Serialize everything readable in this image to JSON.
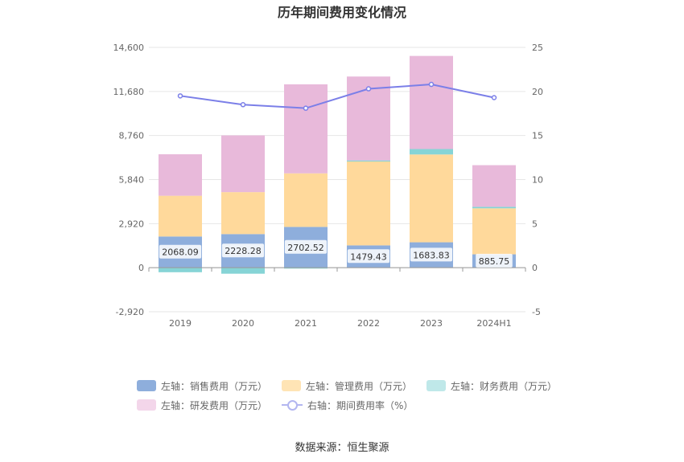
{
  "chart_data": {
    "type": "bar",
    "title": "历年期间费用变化情况",
    "categories": [
      "2019",
      "2020",
      "2021",
      "2022",
      "2023",
      "2024H1"
    ],
    "y_left": {
      "ticks": [
        "-2,920",
        "0",
        "2,920",
        "5,840",
        "8,760",
        "11,680",
        "14,600"
      ],
      "min": -2920,
      "max": 14600
    },
    "y_right": {
      "ticks": [
        "-5",
        "0",
        "5",
        "10",
        "15",
        "20",
        "25"
      ],
      "min": -5,
      "max": 25
    },
    "series": [
      {
        "name": "左轴：销售费用（万元）",
        "color": "#8eaedc",
        "stack": true,
        "values": [
          2068.09,
          2228.28,
          2702.52,
          1479.43,
          1683.83,
          885.75
        ],
        "labels": [
          "2068.09",
          "2228.28",
          "2702.52",
          "1479.43",
          "1683.83",
          "885.75"
        ]
      },
      {
        "name": "左轴：管理费用（万元）",
        "color": "#ffd99b",
        "stack": true,
        "values": [
          2700,
          2780,
          3550,
          5560,
          5820,
          3050
        ]
      },
      {
        "name": "左轴：财务费用（万元）",
        "color": "#86d4d6",
        "stack": true,
        "values": [
          -300,
          -400,
          -60,
          70,
          360,
          100
        ]
      },
      {
        "name": "左轴：研发费用（万元）",
        "color": "#e8b9da",
        "stack": true,
        "values": [
          2750,
          3760,
          5900,
          5560,
          6170,
          2760
        ]
      },
      {
        "name": "右轴：期间费用率（%）",
        "color": "#7b7fe8",
        "type": "line",
        "axis": "right",
        "values": [
          19.5,
          18.5,
          18.1,
          20.3,
          20.8,
          19.3
        ]
      }
    ],
    "grid": true,
    "legend": "bottom"
  },
  "source": "数据来源：恒生聚源"
}
